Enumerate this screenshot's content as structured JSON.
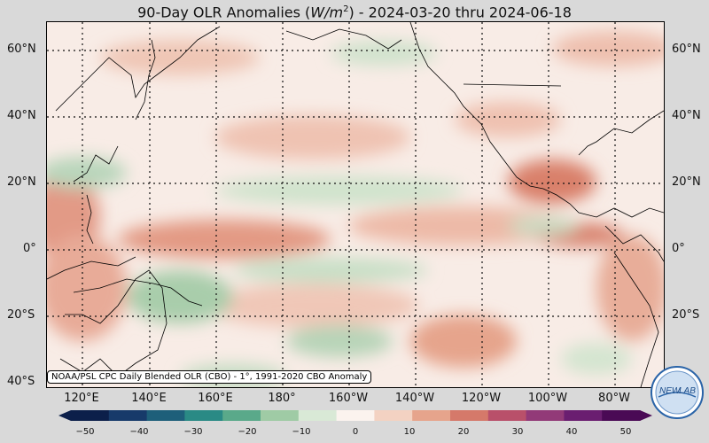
{
  "title": {
    "prefix": "90-Day OLR Anomalies (",
    "unit_base": "W/m",
    "unit_exp": "2",
    "suffix": ") - 2024-03-20 thru 2024-06-18"
  },
  "map": {
    "lat_labels": [
      "60°N",
      "40°N",
      "20°N",
      "0°",
      "20°S",
      "40°S"
    ],
    "lon_labels": [
      "120°E",
      "140°E",
      "160°E",
      "180°",
      "160°W",
      "140°W",
      "120°W",
      "100°W",
      "80°W"
    ],
    "source_note": "NOAA/PSL CPC Daily Blended OLR (CBO) - 1°, 1991-2020 CBO Anomaly"
  },
  "colorbar": {
    "ticks": [
      "−50",
      "−40",
      "−30",
      "−20",
      "−10",
      "0",
      "10",
      "20",
      "30",
      "40",
      "50"
    ],
    "colors": [
      "#0c1f4a",
      "#173a6a",
      "#1e5f7a",
      "#2a8a85",
      "#5aa98a",
      "#9fcba5",
      "#d9e9d6",
      "#fbf3ee",
      "#f3d2c2",
      "#e6a48c",
      "#d5796a",
      "#b9506a",
      "#923a78",
      "#6a1e70",
      "#4a0a55"
    ]
  },
  "logo": {
    "text_left": "NEW",
    "text_right": "LAB"
  }
}
